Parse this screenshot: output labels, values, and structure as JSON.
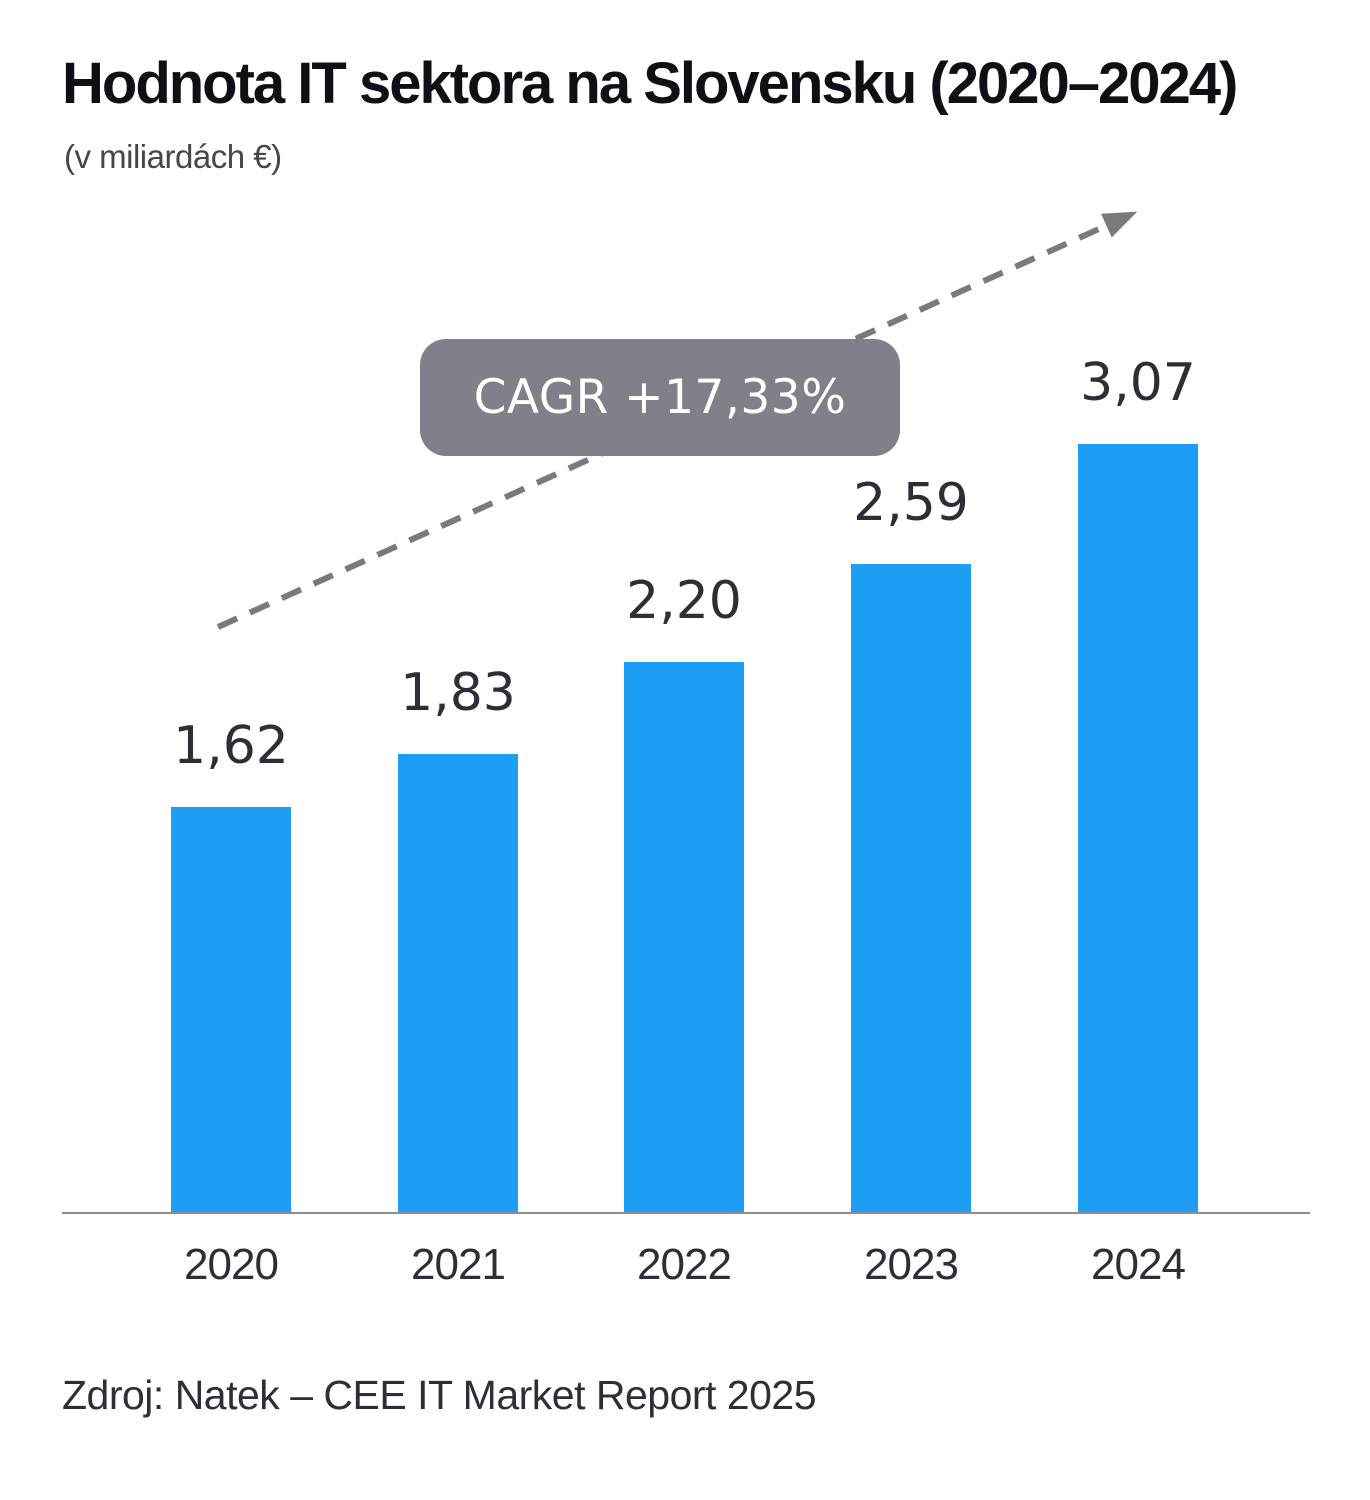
{
  "header": {
    "title": "Hodnota IT sektora na Slovensku (2020–2024)",
    "subtitle": "(v miliardách €)"
  },
  "annotation": {
    "cagr_label": "CAGR +17,33%"
  },
  "source_note": "Zdroj: Natek – CEE IT Market Report 2025",
  "colors": {
    "bar": "#1e9df5",
    "text_dark": "#2e2e38",
    "title_text": "#0f0f16",
    "subtitle_text": "#45454e",
    "badge_bg": "#80808a",
    "badge_text": "#ffffff",
    "trend_dash": "#7a7a7e",
    "axis_line": "#8d8d8d"
  },
  "chart_data": {
    "type": "bar",
    "title": "Hodnota IT sektora na Slovensku (2020–2024)",
    "subtitle": "(v miliardách €)",
    "unit": "miliardy €",
    "categories": [
      "2020",
      "2021",
      "2022",
      "2023",
      "2024"
    ],
    "values": [
      1.62,
      1.83,
      2.2,
      2.59,
      3.07
    ],
    "value_labels": [
      "1,62",
      "1,83",
      "2,20",
      "2,59",
      "3,07"
    ],
    "annotation": "CAGR +17,33%",
    "trend_arrow": "up",
    "ylim": [
      0,
      3.4
    ],
    "grid": false,
    "legend": "none",
    "source": "Zdroj: Natek – CEE IT Market Report 2025"
  }
}
